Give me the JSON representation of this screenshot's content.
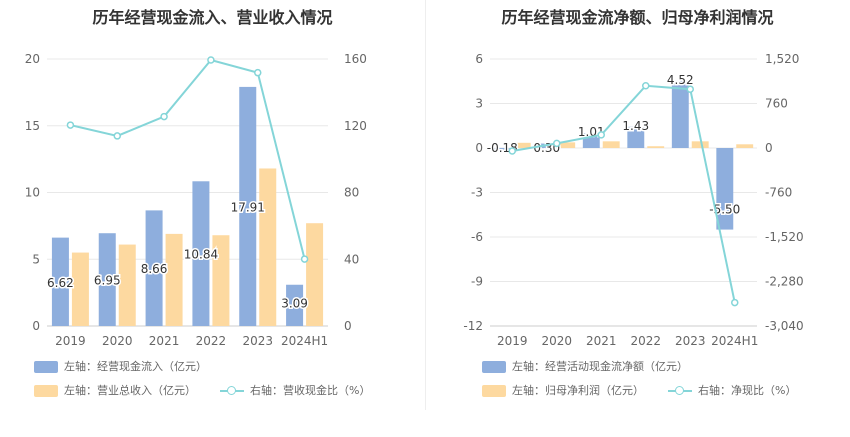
{
  "colors": {
    "bar_primary": "#8eaedd",
    "bar_secondary": "#fdd9a0",
    "line": "#84d5d8",
    "grid": "#e8e8e8",
    "axis_text": "#666666"
  },
  "chart_data": [
    {
      "type": "bar",
      "title": "历年经营现金流入、营业收入情况",
      "categories": [
        "2019",
        "2020",
        "2021",
        "2022",
        "2023",
        "2024H1"
      ],
      "left_axis": {
        "ylim": [
          0,
          20
        ],
        "ticks": [
          "0",
          "5",
          "10",
          "15",
          "20"
        ]
      },
      "right_axis": {
        "ylim": [
          0,
          160
        ],
        "ticks": [
          "0",
          "40",
          "80",
          "120",
          "160"
        ]
      },
      "series": [
        {
          "name": "左轴：经营现金流入（亿元）",
          "type": "bar",
          "axis": "left",
          "values": [
            6.62,
            6.95,
            8.66,
            10.84,
            17.91,
            3.09
          ],
          "labels": [
            "6.62",
            "6.95",
            "8.66",
            "10.84",
            "17.91",
            "3.09"
          ]
        },
        {
          "name": "左轴：营业总收入（亿元）",
          "type": "bar",
          "axis": "left",
          "values": [
            5.5,
            6.1,
            6.9,
            6.8,
            11.8,
            7.7
          ]
        },
        {
          "name": "右轴：营收现金比（%）",
          "type": "line",
          "axis": "right",
          "values": [
            120.4,
            113.9,
            125.5,
            159.4,
            151.8,
            40.1
          ]
        }
      ],
      "legend_position": "bottom-left",
      "grid": true
    },
    {
      "type": "bar",
      "title": "历年经营现金流净额、归母净利润情况",
      "categories": [
        "2019",
        "2020",
        "2021",
        "2022",
        "2023",
        "2024H1"
      ],
      "left_axis": {
        "ylim": [
          -12,
          6
        ],
        "ticks": [
          "-12",
          "-9",
          "-6",
          "-3",
          "0",
          "3",
          "6"
        ]
      },
      "right_axis": {
        "ylim": [
          -3040,
          1520
        ],
        "ticks": [
          "-3,040",
          "-2,280",
          "-1,520",
          "-760",
          "0",
          "760",
          "1,520"
        ]
      },
      "series": [
        {
          "name": "左轴：经营活动现金流净额（亿元）",
          "type": "bar",
          "axis": "left",
          "values": [
            -0.18,
            0.3,
            1.01,
            1.43,
            4.52,
            -5.5
          ],
          "labels": [
            "-0.18",
            "0.30",
            "1.01",
            "1.43",
            "4.52",
            "-5.50"
          ]
        },
        {
          "name": "左轴：归母净利润（亿元）",
          "type": "bar",
          "axis": "left",
          "values": [
            0.35,
            0.38,
            0.45,
            0.12,
            0.45,
            0.25
          ]
        },
        {
          "name": "右轴：净现比（%）",
          "type": "line",
          "axis": "right",
          "values": [
            -51,
            79,
            224,
            1063,
            1004,
            -2640
          ]
        }
      ],
      "legend_position": "bottom-left",
      "grid": true
    }
  ]
}
